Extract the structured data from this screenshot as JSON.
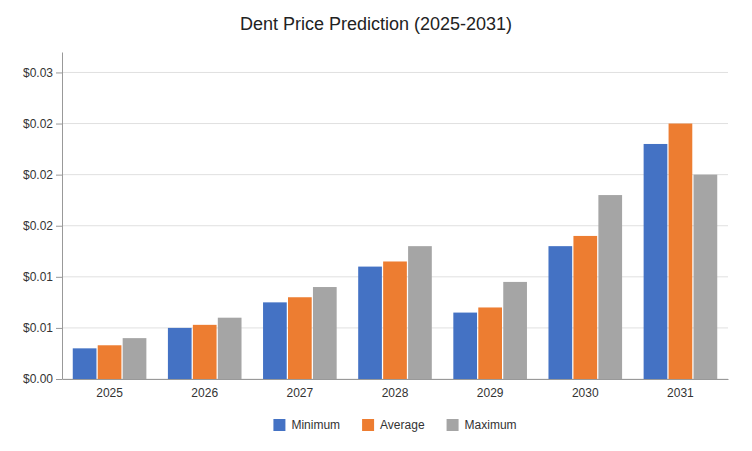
{
  "chart_data": {
    "type": "bar",
    "title": "Dent Price Prediction (2025-2031)",
    "categories": [
      "2025",
      "2026",
      "2027",
      "2028",
      "2029",
      "2030",
      "2031"
    ],
    "series": [
      {
        "name": "Minimum",
        "color": "#4472C4",
        "values": [
          0.003,
          0.005,
          0.0075,
          0.011,
          0.0065,
          0.013,
          0.023
        ]
      },
      {
        "name": "Average",
        "color": "#ED7D31",
        "values": [
          0.0033,
          0.0053,
          0.008,
          0.0115,
          0.007,
          0.014,
          0.025
        ]
      },
      {
        "name": "Maximum",
        "color": "#A5A5A5",
        "values": [
          0.004,
          0.006,
          0.009,
          0.013,
          0.0095,
          0.018,
          0.02
        ]
      }
    ],
    "ylim": [
      0,
      0.032
    ],
    "yticks": [
      {
        "value": 0.0,
        "label": "$0.00"
      },
      {
        "value": 0.005,
        "label": "$0.01"
      },
      {
        "value": 0.01,
        "label": "$0.01"
      },
      {
        "value": 0.015,
        "label": "$0.02"
      },
      {
        "value": 0.02,
        "label": "$0.02"
      },
      {
        "value": 0.025,
        "label": "$0.02"
      },
      {
        "value": 0.03,
        "label": "$0.03"
      }
    ],
    "grid": true,
    "legend": "bottom"
  }
}
